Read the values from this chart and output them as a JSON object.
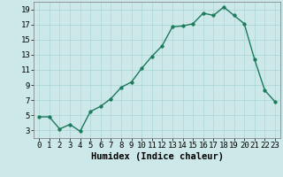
{
  "x": [
    0,
    1,
    2,
    3,
    4,
    5,
    6,
    7,
    8,
    9,
    10,
    11,
    12,
    13,
    14,
    15,
    16,
    17,
    18,
    19,
    20,
    21,
    22,
    23
  ],
  "y": [
    4.8,
    4.8,
    3.2,
    3.8,
    2.9,
    5.5,
    6.2,
    7.2,
    8.7,
    9.4,
    11.2,
    12.8,
    14.2,
    16.7,
    16.8,
    17.1,
    18.5,
    18.2,
    19.3,
    18.2,
    17.1,
    12.4,
    8.3,
    6.8
  ],
  "line_color": "#1a7a5a",
  "marker_color": "#1a7a5a",
  "bg_color": "#cce8e8",
  "grid_color": "#aad4d4",
  "xlabel": "Humidex (Indice chaleur)",
  "ylim": [
    2.0,
    20.0
  ],
  "xlim": [
    -0.5,
    23.5
  ],
  "yticks": [
    3,
    5,
    7,
    9,
    11,
    13,
    15,
    17,
    19
  ],
  "xtick_labels": [
    "0",
    "1",
    "2",
    "3",
    "4",
    "5",
    "6",
    "7",
    "8",
    "9",
    "10",
    "11",
    "12",
    "13",
    "14",
    "15",
    "16",
    "17",
    "18",
    "19",
    "20",
    "21",
    "22",
    "23"
  ],
  "xlabel_fontsize": 7.5,
  "tick_fontsize": 6.5,
  "line_width": 1.0,
  "marker_size": 2.5
}
